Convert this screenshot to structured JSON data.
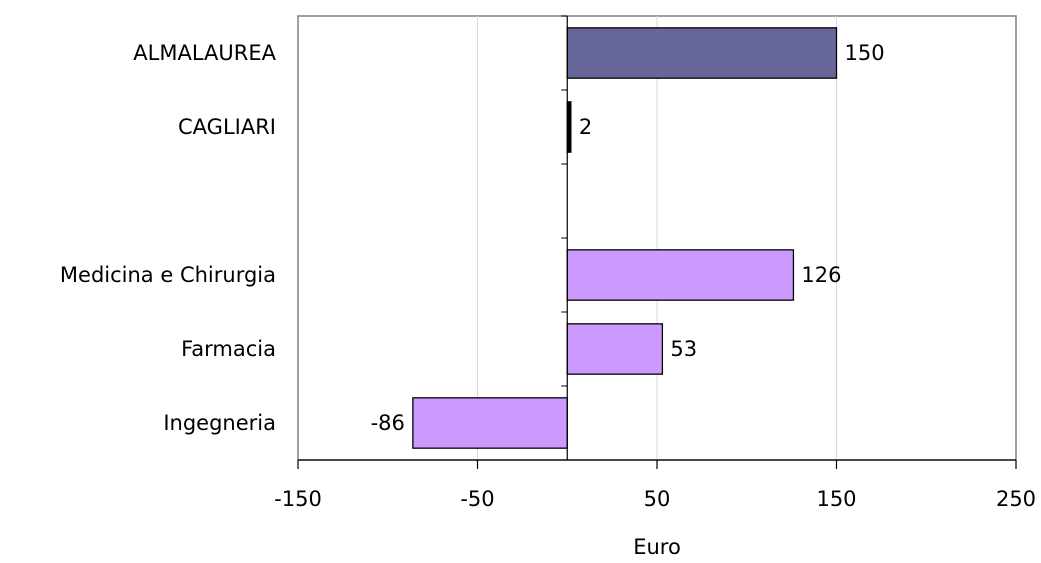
{
  "chart_data": {
    "type": "bar",
    "orientation": "horizontal",
    "categories": [
      "ALMALAUREA",
      "CAGLIARI",
      "",
      "Medicina e Chirurgia",
      "Farmacia",
      "Ingegneria"
    ],
    "values": [
      150,
      2,
      null,
      126,
      53,
      -86
    ],
    "value_labels": [
      "150",
      "2",
      "",
      "126",
      "53",
      "-86"
    ],
    "bar_colors": [
      "#666699",
      "#000000",
      null,
      "#cc99ff",
      "#cc99ff",
      "#cc99ff"
    ],
    "xlabel": "Euro",
    "xlim": [
      -150,
      250
    ],
    "x_ticks": [
      -150,
      -50,
      50,
      150,
      250
    ],
    "x_tick_labels": [
      "-150",
      "-50",
      "50",
      "150",
      "250"
    ],
    "grid": "vertical",
    "legend": "none"
  }
}
